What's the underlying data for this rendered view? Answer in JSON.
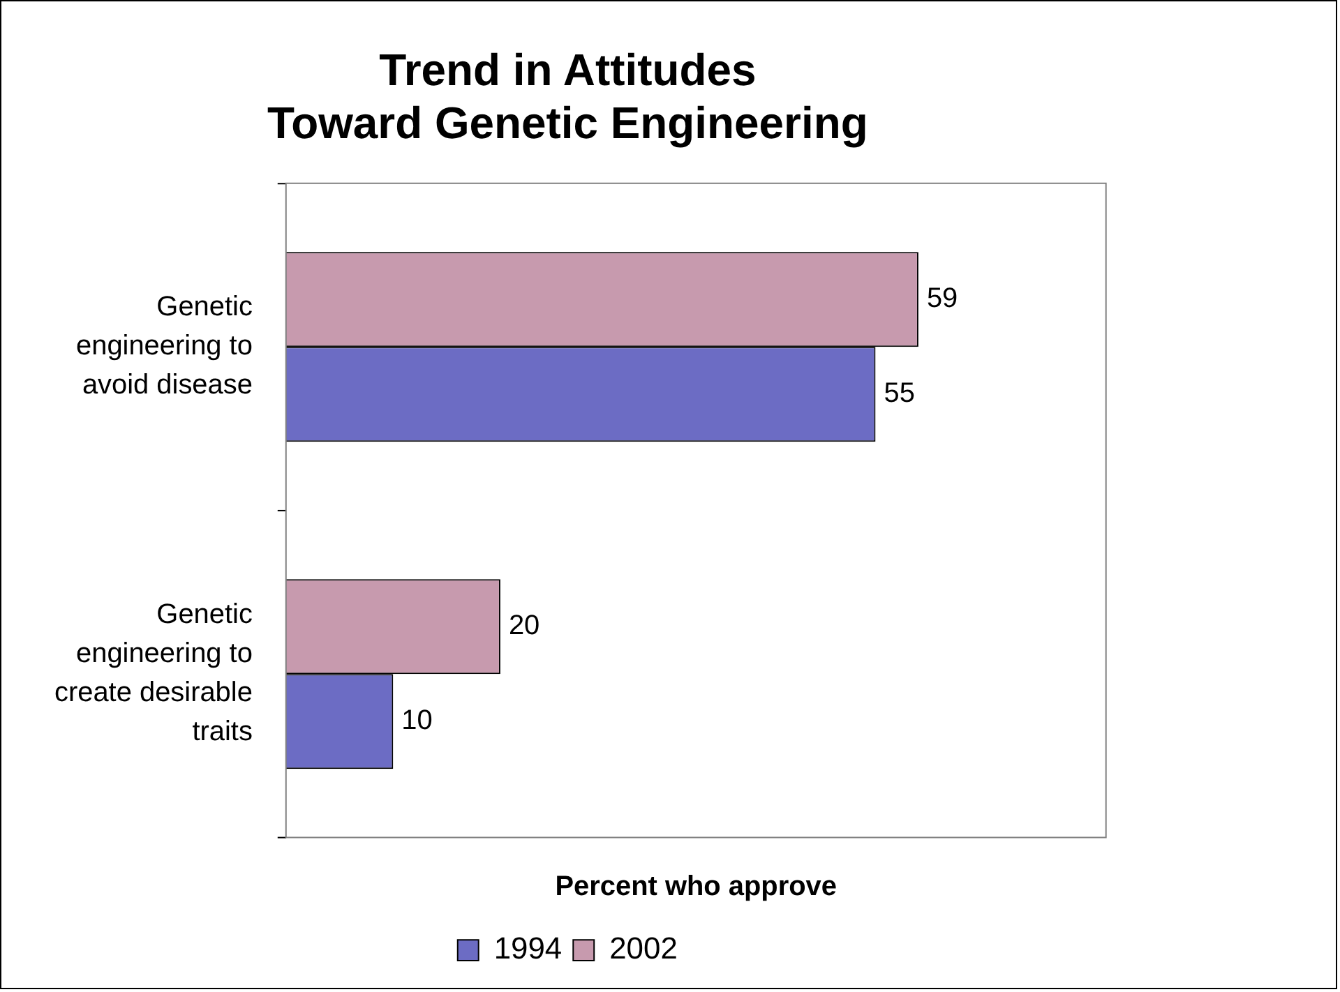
{
  "chart_data": {
    "type": "bar",
    "orientation": "horizontal",
    "title": "Trend in Attitudes\nToward Genetic Engineering",
    "xlabel": "Percent who approve",
    "categories": [
      "Genetic engineering to avoid disease",
      "Genetic engineering to create desirable traits"
    ],
    "series": [
      {
        "name": "1994",
        "color": "#6c6cc4",
        "values": [
          55,
          10
        ]
      },
      {
        "name": "2002",
        "color": "#c79aae",
        "values": [
          59,
          20
        ]
      }
    ],
    "xlim": [
      0,
      76.5
    ],
    "tick_labels": "y",
    "grid": false,
    "legend": "bottom",
    "data_labels": true
  }
}
